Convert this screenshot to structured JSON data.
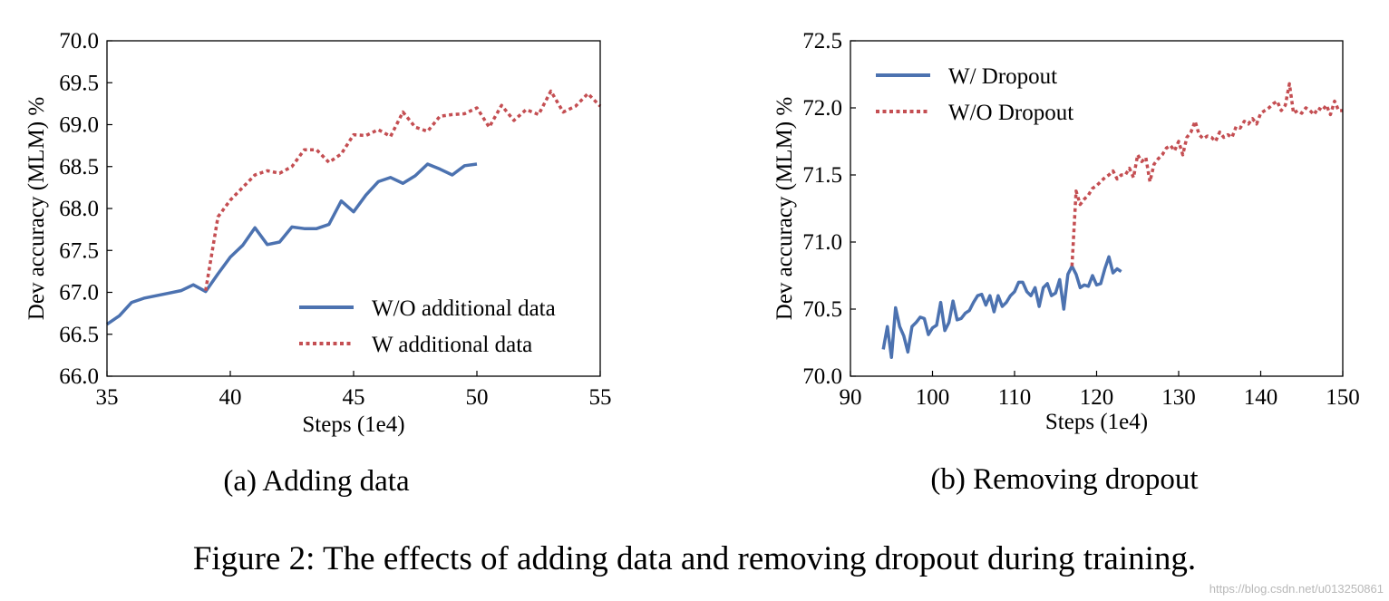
{
  "figure": {
    "caption": "Figure 2: The effects of adding data and removing dropout during training.",
    "watermark": "https://blog.csdn.net/u013250861"
  },
  "colors": {
    "blue": "#4c72b0",
    "red": "#c44e52",
    "axis": "#000000"
  },
  "chart_data": [
    {
      "type": "line",
      "caption": "(a) Adding data",
      "xlabel": "Steps (1e4)",
      "ylabel": "Dev accuracy (MLM) %",
      "xlim": [
        35,
        55
      ],
      "ylim": [
        66.0,
        70.0
      ],
      "xticks": [
        "35",
        "40",
        "45",
        "50",
        "55"
      ],
      "yticks": [
        "66.0",
        "66.5",
        "67.0",
        "67.5",
        "68.0",
        "68.5",
        "69.0",
        "69.5",
        "70.0"
      ],
      "grid": false,
      "legend_position": "lower-right",
      "series": [
        {
          "name": "W/O additional data",
          "color": "#4c72b0",
          "style": "solid",
          "points": [
            [
              35,
              66.62
            ],
            [
              35.5,
              66.72
            ],
            [
              36,
              66.88
            ],
            [
              36.5,
              66.93
            ],
            [
              37,
              66.96
            ],
            [
              37.5,
              66.99
            ],
            [
              38,
              67.02
            ],
            [
              38.5,
              67.09
            ],
            [
              39,
              67.01
            ],
            [
              39.5,
              67.22
            ],
            [
              40,
              67.42
            ],
            [
              40.5,
              67.56
            ],
            [
              41,
              67.77
            ],
            [
              41.5,
              67.57
            ],
            [
              42,
              67.6
            ],
            [
              42.5,
              67.78
            ],
            [
              43,
              67.76
            ],
            [
              43.5,
              67.76
            ],
            [
              44,
              67.81
            ],
            [
              44.5,
              68.09
            ],
            [
              45,
              67.96
            ],
            [
              45.5,
              68.16
            ],
            [
              46,
              68.32
            ],
            [
              46.5,
              68.37
            ],
            [
              47,
              68.3
            ],
            [
              47.5,
              68.39
            ],
            [
              48,
              68.53
            ],
            [
              48.5,
              68.47
            ],
            [
              49,
              68.4
            ],
            [
              49.5,
              68.51
            ],
            [
              50,
              68.53
            ]
          ]
        },
        {
          "name": "W additional data",
          "color": "#c44e52",
          "style": "dotted",
          "points": [
            [
              39,
              67.02
            ],
            [
              39.5,
              67.9
            ],
            [
              40,
              68.1
            ],
            [
              40.5,
              68.25
            ],
            [
              41,
              68.4
            ],
            [
              41.5,
              68.45
            ],
            [
              42,
              68.42
            ],
            [
              42.5,
              68.5
            ],
            [
              43,
              68.7
            ],
            [
              43.5,
              68.7
            ],
            [
              44,
              68.55
            ],
            [
              44.5,
              68.65
            ],
            [
              45,
              68.88
            ],
            [
              45.5,
              68.87
            ],
            [
              46,
              68.94
            ],
            [
              46.5,
              68.86
            ],
            [
              47,
              69.15
            ],
            [
              47.5,
              68.97
            ],
            [
              48,
              68.92
            ],
            [
              48.5,
              69.1
            ],
            [
              49,
              69.12
            ],
            [
              49.5,
              69.13
            ],
            [
              50,
              69.2
            ],
            [
              50.5,
              68.97
            ],
            [
              51,
              69.23
            ],
            [
              51.5,
              69.05
            ],
            [
              52,
              69.18
            ],
            [
              52.5,
              69.12
            ],
            [
              53,
              69.4
            ],
            [
              53.5,
              69.15
            ],
            [
              54,
              69.22
            ],
            [
              54.5,
              69.37
            ],
            [
              55,
              69.22
            ]
          ]
        }
      ]
    },
    {
      "type": "line",
      "caption": "(b) Removing dropout",
      "xlabel": "Steps (1e4)",
      "ylabel": "Dev accuracy (MLM) %",
      "xlim": [
        90,
        150
      ],
      "ylim": [
        70.0,
        72.5
      ],
      "xticks": [
        "90",
        "100",
        "110",
        "120",
        "130",
        "140",
        "150"
      ],
      "yticks": [
        "70.0",
        "70.5",
        "71.0",
        "71.5",
        "72.0",
        "72.5"
      ],
      "grid": false,
      "legend_position": "upper-left",
      "series": [
        {
          "name": "W/ Dropout",
          "color": "#4c72b0",
          "style": "solid",
          "points": [
            [
              94,
              70.2
            ],
            [
              94.5,
              70.37
            ],
            [
              95,
              70.14
            ],
            [
              95.5,
              70.51
            ],
            [
              96,
              70.37
            ],
            [
              96.5,
              70.3
            ],
            [
              97,
              70.18
            ],
            [
              97.5,
              70.37
            ],
            [
              98,
              70.4
            ],
            [
              98.5,
              70.44
            ],
            [
              99,
              70.43
            ],
            [
              99.5,
              70.31
            ],
            [
              100,
              70.36
            ],
            [
              100.5,
              70.38
            ],
            [
              101,
              70.55
            ],
            [
              101.5,
              70.34
            ],
            [
              102,
              70.4
            ],
            [
              102.5,
              70.56
            ],
            [
              103,
              70.42
            ],
            [
              103.5,
              70.43
            ],
            [
              104,
              70.47
            ],
            [
              104.5,
              70.49
            ],
            [
              105,
              70.55
            ],
            [
              105.5,
              70.6
            ],
            [
              106,
              70.61
            ],
            [
              106.5,
              70.53
            ],
            [
              107,
              70.6
            ],
            [
              107.5,
              70.48
            ],
            [
              108,
              70.6
            ],
            [
              108.5,
              70.52
            ],
            [
              109,
              70.55
            ],
            [
              109.5,
              70.6
            ],
            [
              110,
              70.63
            ],
            [
              110.5,
              70.7
            ],
            [
              111,
              70.7
            ],
            [
              111.5,
              70.63
            ],
            [
              112,
              70.6
            ],
            [
              112.5,
              70.66
            ],
            [
              113,
              70.52
            ],
            [
              113.5,
              70.66
            ],
            [
              114,
              70.69
            ],
            [
              114.5,
              70.6
            ],
            [
              115,
              70.62
            ],
            [
              115.5,
              70.72
            ],
            [
              116,
              70.5
            ],
            [
              116.5,
              70.76
            ],
            [
              117,
              70.82
            ],
            [
              117.5,
              70.76
            ],
            [
              118,
              70.66
            ],
            [
              118.5,
              70.68
            ],
            [
              119,
              70.67
            ],
            [
              119.5,
              70.75
            ],
            [
              120,
              70.68
            ],
            [
              120.5,
              70.69
            ],
            [
              121,
              70.8
            ],
            [
              121.5,
              70.89
            ],
            [
              122,
              70.77
            ],
            [
              122.5,
              70.8
            ],
            [
              123,
              70.78
            ]
          ]
        },
        {
          "name": "W/O Dropout",
          "color": "#c44e52",
          "style": "dotted",
          "points": [
            [
              117,
              70.82
            ],
            [
              117.5,
              71.38
            ],
            [
              118,
              71.28
            ],
            [
              118.5,
              71.32
            ],
            [
              119,
              71.35
            ],
            [
              119.5,
              71.4
            ],
            [
              120,
              71.42
            ],
            [
              120.5,
              71.45
            ],
            [
              121,
              71.48
            ],
            [
              121.5,
              71.5
            ],
            [
              122,
              71.53
            ],
            [
              122.5,
              71.47
            ],
            [
              123,
              71.5
            ],
            [
              123.5,
              71.5
            ],
            [
              124,
              71.55
            ],
            [
              124.5,
              71.48
            ],
            [
              125,
              71.65
            ],
            [
              125.5,
              71.6
            ],
            [
              126,
              71.63
            ],
            [
              126.5,
              71.45
            ],
            [
              127,
              71.58
            ],
            [
              127.5,
              71.62
            ],
            [
              128,
              71.65
            ],
            [
              128.5,
              71.7
            ],
            [
              129,
              71.72
            ],
            [
              129.5,
              71.68
            ],
            [
              130,
              71.75
            ],
            [
              130.5,
              71.65
            ],
            [
              131,
              71.78
            ],
            [
              131.5,
              71.82
            ],
            [
              132,
              71.9
            ],
            [
              132.5,
              71.8
            ],
            [
              133,
              71.77
            ],
            [
              133.5,
              71.79
            ],
            [
              134,
              71.78
            ],
            [
              134.5,
              71.75
            ],
            [
              135,
              71.82
            ],
            [
              135.5,
              71.78
            ],
            [
              136,
              71.8
            ],
            [
              136.5,
              71.78
            ],
            [
              137,
              71.86
            ],
            [
              137.5,
              71.85
            ],
            [
              138,
              71.9
            ],
            [
              138.5,
              71.88
            ],
            [
              139,
              71.92
            ],
            [
              139.5,
              71.88
            ],
            [
              140,
              71.96
            ],
            [
              140.5,
              71.98
            ],
            [
              141,
              72.0
            ],
            [
              141.5,
              72.03
            ],
            [
              142,
              72.05
            ],
            [
              142.5,
              71.98
            ],
            [
              143,
              72.02
            ],
            [
              143.5,
              72.18
            ],
            [
              144,
              71.96
            ],
            [
              144.5,
              71.98
            ],
            [
              145,
              71.96
            ],
            [
              145.5,
              72.0
            ],
            [
              146,
              71.98
            ],
            [
              146.5,
              71.95
            ],
            [
              147,
              72.0
            ],
            [
              147.5,
              71.98
            ],
            [
              148,
              72.02
            ],
            [
              148.5,
              71.95
            ],
            [
              149,
              72.05
            ],
            [
              149.5,
              71.98
            ],
            [
              150,
              71.98
            ]
          ]
        }
      ]
    }
  ]
}
